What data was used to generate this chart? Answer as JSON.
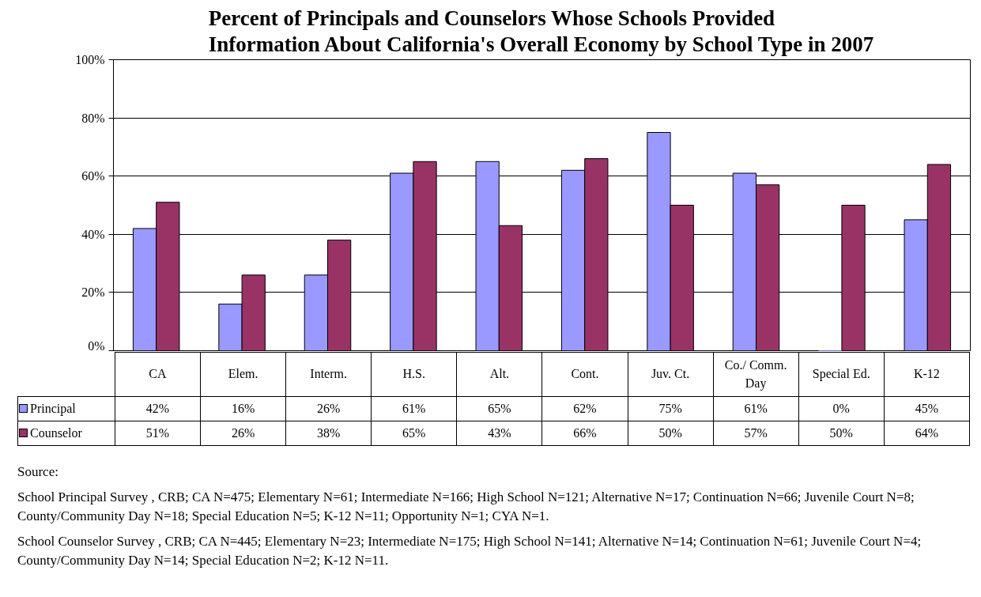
{
  "chart_data": {
    "type": "bar",
    "title": "Percent of Principals and Counselors Whose Schools Provided\nInformation About California's Overall Economy by School Type in 2007",
    "categories": [
      "CA",
      "Elem.",
      "Interm.",
      "H.S.",
      "Alt.",
      "Cont.",
      "Juv. Ct.",
      "Co./ Comm. Day",
      "Special Ed.",
      "K-12"
    ],
    "series": [
      {
        "name": "Principal",
        "color": "#9999ff",
        "values": [
          42,
          16,
          26,
          61,
          65,
          62,
          75,
          61,
          0,
          45
        ],
        "value_labels": [
          "42%",
          "16%",
          "26%",
          "61%",
          "65%",
          "62%",
          "75%",
          "61%",
          "0%",
          "45%"
        ]
      },
      {
        "name": "Counselor",
        "color": "#993366",
        "values": [
          51,
          26,
          38,
          65,
          43,
          66,
          50,
          57,
          50,
          64
        ],
        "value_labels": [
          "51%",
          "26%",
          "38%",
          "65%",
          "43%",
          "66%",
          "50%",
          "57%",
          "50%",
          "64%"
        ]
      }
    ],
    "ylim": [
      0,
      100
    ],
    "yticks": [
      {
        "value": 0,
        "label": "0%"
      },
      {
        "value": 20,
        "label": "20%"
      },
      {
        "value": 40,
        "label": "40%"
      },
      {
        "value": 60,
        "label": "60%"
      },
      {
        "value": 80,
        "label": "80%"
      },
      {
        "value": 100,
        "label": "100%"
      }
    ],
    "grid": "y",
    "legend": "bottom",
    "annotations": [
      "Source:",
      "School Principal Survey , CRB; CA N=475; Elementary N=61; Intermediate N=166; High School N=121; Alternative N=17; Continuation N=66; Juvenile Court N=8; County/Community Day N=18; Special Education N=5; K-12 N=11; Opportunity N=1; CYA N=1.",
      "School Counselor Survey , CRB; CA N=445; Elementary N=23; Intermediate N=175; High School N=141; Alternative N=14; Continuation N=61; Juvenile Court N=4; County/Community Day N=14; Special Education N=2; K-12 N=11."
    ]
  }
}
